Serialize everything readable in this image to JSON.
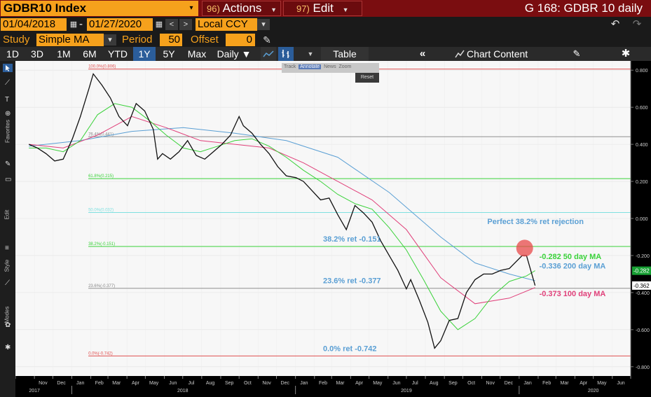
{
  "header": {
    "ticker": "GDBR10 Index",
    "actions_num": "96)",
    "actions_label": "Actions",
    "edit_num": "97)",
    "edit_label": "Edit",
    "title": "G 168: GDBR 10 daily"
  },
  "range": {
    "start": "01/04/2018",
    "dash": "-",
    "end": "01/27/2020",
    "currency": "Local CCY"
  },
  "study": {
    "label": "Study",
    "value": "Simple MA",
    "period_label": "Period",
    "period": "50",
    "offset_label": "Offset",
    "offset": "0"
  },
  "periods": [
    "1D",
    "3D",
    "1M",
    "6M",
    "YTD",
    "1Y",
    "5Y",
    "Max"
  ],
  "selected_period": "1Y",
  "frequency": "Daily ▼",
  "table_label": "Table",
  "chart_content_label": "Chart Content",
  "mini_toolbar": {
    "items": [
      "Track",
      "Annotate",
      "News",
      "Zoom"
    ],
    "reset": "Reset"
  },
  "sidebar_labels": [
    "Favorites",
    "Edit",
    "Style",
    "Modes"
  ],
  "chart_data": {
    "type": "line",
    "title": "",
    "xlabel": "",
    "ylabel": "",
    "ylim": [
      -0.85,
      0.85
    ],
    "yticks": [
      "0.800",
      "0.600",
      "0.400",
      "0.200",
      "0.000",
      "-0.200",
      "-0.400",
      "-0.600",
      "-0.800"
    ],
    "x_months": [
      "Nov",
      "Dec",
      "Jan",
      "Feb",
      "Mar",
      "Apr",
      "May",
      "Jun",
      "Jul",
      "Aug",
      "Sep",
      "Oct",
      "Nov",
      "Dec",
      "Jan",
      "Feb",
      "Mar",
      "Apr",
      "May",
      "Jun",
      "Jul",
      "Aug",
      "Sep",
      "Oct",
      "Nov",
      "Dec",
      "Jan",
      "Feb",
      "Mar",
      "Apr",
      "May",
      "Jun"
    ],
    "x_years": [
      "2017",
      "2018",
      "2019",
      "2020"
    ],
    "series": [
      {
        "name": "GDBR10",
        "color": "#ffffff",
        "x": [
          "2017-10-23",
          "2017-11-06",
          "2017-11-20",
          "2017-12-04",
          "2017-12-18",
          "2018-01-02",
          "2018-01-15",
          "2018-01-29",
          "2018-02-05",
          "2018-02-19",
          "2018-03-05",
          "2018-03-19",
          "2018-04-02",
          "2018-04-16",
          "2018-04-30",
          "2018-05-14",
          "2018-05-21",
          "2018-05-29",
          "2018-06-11",
          "2018-06-25",
          "2018-07-09",
          "2018-07-23",
          "2018-08-06",
          "2018-08-20",
          "2018-09-03",
          "2018-09-17",
          "2018-10-01",
          "2018-10-08",
          "2018-10-22",
          "2018-11-05",
          "2018-11-19",
          "2018-12-03",
          "2018-12-17",
          "2019-01-02",
          "2019-01-14",
          "2019-01-28",
          "2019-02-11",
          "2019-02-25",
          "2019-03-11",
          "2019-03-25",
          "2019-04-08",
          "2019-04-22",
          "2019-05-06",
          "2019-05-20",
          "2019-06-03",
          "2019-06-17",
          "2019-07-01",
          "2019-07-08",
          "2019-07-22",
          "2019-08-05",
          "2019-08-16",
          "2019-08-26",
          "2019-09-09",
          "2019-09-23",
          "2019-10-07",
          "2019-10-21",
          "2019-11-04",
          "2019-11-18",
          "2019-12-02",
          "2019-12-16",
          "2020-01-06",
          "2020-01-13",
          "2020-01-27"
        ],
        "y": [
          0.4,
          0.38,
          0.35,
          0.31,
          0.32,
          0.43,
          0.55,
          0.7,
          0.78,
          0.72,
          0.65,
          0.55,
          0.5,
          0.62,
          0.58,
          0.48,
          0.32,
          0.35,
          0.32,
          0.36,
          0.42,
          0.34,
          0.32,
          0.36,
          0.4,
          0.45,
          0.55,
          0.5,
          0.46,
          0.4,
          0.35,
          0.28,
          0.23,
          0.22,
          0.2,
          0.15,
          0.1,
          0.11,
          0.02,
          -0.06,
          0.07,
          0.03,
          -0.02,
          -0.12,
          -0.2,
          -0.28,
          -0.38,
          -0.33,
          -0.44,
          -0.56,
          -0.7,
          -0.66,
          -0.55,
          -0.54,
          -0.4,
          -0.33,
          -0.3,
          -0.3,
          -0.28,
          -0.27,
          -0.2,
          -0.2,
          -0.362
        ]
      },
      {
        "name": "50 day MA",
        "color": "#3ad23a",
        "x": [
          "2017-10-23",
          "2017-11-20",
          "2017-12-18",
          "2018-01-15",
          "2018-02-12",
          "2018-03-12",
          "2018-04-09",
          "2018-05-07",
          "2018-06-04",
          "2018-07-02",
          "2018-07-30",
          "2018-08-27",
          "2018-09-24",
          "2018-10-22",
          "2018-11-19",
          "2018-12-17",
          "2019-01-14",
          "2019-02-11",
          "2019-03-11",
          "2019-04-08",
          "2019-05-06",
          "2019-06-03",
          "2019-07-01",
          "2019-07-29",
          "2019-08-26",
          "2019-09-23",
          "2019-10-21",
          "2019-11-18",
          "2019-12-16",
          "2020-01-13",
          "2020-01-27"
        ],
        "y": [
          0.38,
          0.38,
          0.36,
          0.42,
          0.56,
          0.62,
          0.6,
          0.53,
          0.45,
          0.38,
          0.36,
          0.39,
          0.42,
          0.43,
          0.39,
          0.33,
          0.26,
          0.2,
          0.13,
          0.08,
          0.05,
          -0.05,
          -0.17,
          -0.33,
          -0.5,
          -0.6,
          -0.54,
          -0.42,
          -0.34,
          -0.31,
          -0.282
        ]
      },
      {
        "name": "100 day MA",
        "color": "#e0407a",
        "x": [
          "2017-10-23",
          "2017-12-18",
          "2018-02-12",
          "2018-04-09",
          "2018-06-04",
          "2018-07-30",
          "2018-09-24",
          "2018-11-19",
          "2019-01-14",
          "2019-03-11",
          "2019-05-06",
          "2019-07-01",
          "2019-08-26",
          "2019-10-21",
          "2019-12-16",
          "2020-01-27"
        ],
        "y": [
          0.4,
          0.38,
          0.45,
          0.55,
          0.49,
          0.42,
          0.4,
          0.38,
          0.3,
          0.2,
          0.1,
          -0.06,
          -0.32,
          -0.46,
          -0.43,
          -0.373
        ]
      },
      {
        "name": "200 day MA",
        "color": "#5a9fd4",
        "x": [
          "2017-10-23",
          "2018-01-15",
          "2018-04-09",
          "2018-07-02",
          "2018-09-24",
          "2018-12-17",
          "2019-03-11",
          "2019-06-03",
          "2019-08-26",
          "2019-10-21",
          "2019-12-16",
          "2020-01-27"
        ],
        "y": [
          0.39,
          0.42,
          0.47,
          0.49,
          0.46,
          0.42,
          0.33,
          0.14,
          -0.1,
          -0.24,
          -0.3,
          -0.336
        ]
      }
    ],
    "fib_levels": [
      {
        "label": "100.0%(0.806)",
        "value": 0.806,
        "color": "#e05050"
      },
      {
        "label": "76.4%(0.441)",
        "value": 0.441,
        "color": "#909090"
      },
      {
        "label": "61.8%(0.215)",
        "value": 0.215,
        "color": "#3ad23a"
      },
      {
        "label": "50.0%(0.032)",
        "value": 0.032,
        "color": "#7fe0e0"
      },
      {
        "label": "38.2%(-0.151)",
        "value": -0.151,
        "color": "#3ad23a"
      },
      {
        "label": "23.6%(-0.377)",
        "value": -0.377,
        "color": "#909090"
      },
      {
        "label": "0.0%(-0.742)",
        "value": -0.742,
        "color": "#e05050"
      }
    ],
    "annotations": [
      {
        "text": "38.2% ret -0.151",
        "color": "#5a9fd4",
        "x": "2019-02-15",
        "y": -0.125
      },
      {
        "text": "23.6% ret -0.377",
        "color": "#5a9fd4",
        "x": "2019-02-15",
        "y": -0.35
      },
      {
        "text": "0.0% ret -0.742",
        "color": "#5a9fd4",
        "x": "2019-02-15",
        "y": -0.715
      },
      {
        "text": "Perfect 38.2% ret rejection",
        "color": "#5a9fd4",
        "x": "2019-11-10",
        "y": -0.03
      },
      {
        "text": "-0.282 50 day MA",
        "color": "#3ad23a",
        "x": "2020-01-27",
        "y": -0.22
      },
      {
        "text": "-0.336 200 day MA",
        "color": "#5a9fd4",
        "x": "2020-01-27",
        "y": -0.27
      },
      {
        "text": "-0.373 100 day MA",
        "color": "#e0407a",
        "x": "2020-01-27",
        "y": -0.42
      }
    ],
    "last_value_labels": [
      {
        "text": "-0.282",
        "value": -0.282,
        "bg": "#17a033"
      },
      {
        "text": "-0.362",
        "value": -0.362,
        "bg": "#ffffff",
        "fg": "#000000"
      }
    ]
  }
}
